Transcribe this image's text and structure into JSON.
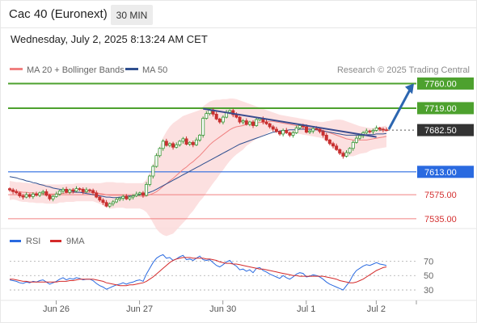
{
  "header": {
    "title": "Cac 40 (Euronext)",
    "timeframe": "30 MIN",
    "datetime": "Wednesday, July 2, 2025 8:13:24 AM CET"
  },
  "legend": [
    {
      "label": "MA 20 + Bollinger Bands",
      "color": "#f08080"
    },
    {
      "label": "MA 50",
      "color": "#2f4f8f"
    }
  ],
  "credit": "Research © 2025 Trading Central",
  "colors": {
    "resistance": "#4da12e",
    "support_blue": "#2a6ae0",
    "support_red": "#f08080",
    "current": "#333333",
    "candle_up": "#3a9a3a",
    "candle_down": "#c83030",
    "trend_arrow": "#2c66b0"
  },
  "chart_data": [
    {
      "type": "candlestick",
      "instrument": "Cac 40 (Euronext)",
      "interval": "30 MIN",
      "x_ticks": [
        "Jun 26",
        "Jun 27",
        "Jun 30",
        "Jul 1",
        "Jul 2"
      ],
      "ylim": [
        7520,
        7770
      ],
      "levels": [
        {
          "label": "7760.00",
          "value": 7760,
          "kind": "resistance"
        },
        {
          "label": "7719.00",
          "value": 7719,
          "kind": "resistance"
        },
        {
          "label": "7682.50",
          "value": 7682.5,
          "kind": "current"
        },
        {
          "label": "7613.00",
          "value": 7613,
          "kind": "support"
        },
        {
          "label": "7575.00",
          "value": 7575,
          "kind": "support"
        },
        {
          "label": "7535.00",
          "value": 7535,
          "kind": "support"
        }
      ],
      "close": [
        7583,
        7580,
        7578,
        7573,
        7571,
        7575,
        7572,
        7576,
        7574,
        7578,
        7580,
        7574,
        7568,
        7572,
        7576,
        7581,
        7584,
        7579,
        7583,
        7581,
        7585,
        7584,
        7580,
        7583,
        7582,
        7578,
        7571,
        7566,
        7562,
        7556,
        7560,
        7563,
        7567,
        7569,
        7572,
        7568,
        7571,
        7573,
        7576,
        7578,
        7574,
        7592,
        7606,
        7622,
        7640,
        7652,
        7664,
        7657,
        7660,
        7654,
        7658,
        7664,
        7668,
        7659,
        7662,
        7658,
        7666,
        7674,
        7702,
        7710,
        7716,
        7709,
        7701,
        7696,
        7704,
        7712,
        7715,
        7708,
        7704,
        7696,
        7698,
        7692,
        7696,
        7690,
        7700,
        7702,
        7696,
        7693,
        7688,
        7684,
        7680,
        7676,
        7682,
        7678,
        7674,
        7678,
        7686,
        7690,
        7688,
        7679,
        7681,
        7685,
        7684,
        7680,
        7674,
        7666,
        7660,
        7656,
        7650,
        7644,
        7639,
        7645,
        7652,
        7662,
        7669,
        7673,
        7678,
        7681,
        7680,
        7682,
        7686,
        7684,
        7683,
        7682.5
      ],
      "ma20": [
        7582,
        7582,
        7581,
        7580,
        7579,
        7579,
        7578,
        7578,
        7577,
        7577,
        7577,
        7576,
        7576,
        7576,
        7576,
        7577,
        7577,
        7578,
        7578,
        7578,
        7579,
        7579,
        7579,
        7579,
        7579,
        7579,
        7578,
        7577,
        7576,
        7575,
        7574,
        7574,
        7574,
        7574,
        7574,
        7573,
        7573,
        7573,
        7573,
        7573,
        7572,
        7573,
        7575,
        7577,
        7580,
        7584,
        7589,
        7593,
        7598,
        7602,
        7607,
        7612,
        7617,
        7621,
        7626,
        7630,
        7635,
        7640,
        7646,
        7652,
        7658,
        7663,
        7667,
        7671,
        7675,
        7679,
        7683,
        7686,
        7688,
        7689,
        7690,
        7692,
        7693,
        7694,
        7695,
        7695,
        7696,
        7696,
        7697,
        7697,
        7696,
        7695,
        7694,
        7693,
        7692,
        7691,
        7690,
        7689,
        7688,
        7687,
        7686,
        7685,
        7684,
        7683,
        7682,
        7680,
        7678,
        7676,
        7674,
        7672,
        7670,
        7668,
        7667,
        7666,
        7666,
        7666,
        7666,
        7666,
        7667,
        7668,
        7669,
        7670,
        7671,
        7672
      ],
      "bollinger_upper": [
        7598,
        7597,
        7596,
        7596,
        7595,
        7595,
        7594,
        7594,
        7593,
        7593,
        7593,
        7592,
        7592,
        7592,
        7592,
        7592,
        7592,
        7593,
        7593,
        7593,
        7594,
        7594,
        7594,
        7594,
        7594,
        7594,
        7594,
        7594,
        7595,
        7596,
        7596,
        7596,
        7595,
        7595,
        7595,
        7594,
        7594,
        7594,
        7594,
        7594,
        7594,
        7600,
        7612,
        7626,
        7642,
        7656,
        7670,
        7680,
        7688,
        7694,
        7698,
        7702,
        7706,
        7708,
        7710,
        7712,
        7714,
        7716,
        7722,
        7726,
        7730,
        7732,
        7733,
        7733,
        7734,
        7734,
        7735,
        7735,
        7734,
        7732,
        7730,
        7728,
        7726,
        7724,
        7722,
        7720,
        7718,
        7716,
        7714,
        7712,
        7710,
        7708,
        7707,
        7706,
        7705,
        7704,
        7703,
        7702,
        7701,
        7700,
        7699,
        7698,
        7697,
        7696,
        7696,
        7697,
        7698,
        7699,
        7700,
        7700,
        7699,
        7697,
        7695,
        7693,
        7691,
        7689,
        7688,
        7687,
        7686,
        7686,
        7687,
        7688,
        7689,
        7690
      ],
      "bollinger_lower": [
        7566,
        7567,
        7566,
        7564,
        7563,
        7563,
        7562,
        7562,
        7561,
        7561,
        7561,
        7560,
        7560,
        7560,
        7560,
        7562,
        7562,
        7563,
        7563,
        7563,
        7564,
        7564,
        7564,
        7564,
        7564,
        7564,
        7562,
        7560,
        7557,
        7554,
        7552,
        7552,
        7553,
        7553,
        7553,
        7552,
        7552,
        7552,
        7552,
        7552,
        7550,
        7546,
        7538,
        7528,
        7518,
        7512,
        7508,
        7506,
        7508,
        7510,
        7516,
        7522,
        7528,
        7534,
        7542,
        7548,
        7556,
        7564,
        7570,
        7578,
        7586,
        7594,
        7601,
        7609,
        7616,
        7624,
        7631,
        7637,
        7642,
        7646,
        7650,
        7656,
        7660,
        7664,
        7668,
        7670,
        7674,
        7676,
        7680,
        7682,
        7682,
        7682,
        7681,
        7680,
        7679,
        7678,
        7677,
        7676,
        7675,
        7674,
        7673,
        7672,
        7671,
        7670,
        7668,
        7663,
        7658,
        7653,
        7648,
        7644,
        7641,
        7639,
        7639,
        7639,
        7641,
        7643,
        7644,
        7645,
        7648,
        7650,
        7651,
        7652,
        7653,
        7654
      ],
      "ma50": [
        7605,
        7604,
        7603,
        7601,
        7600,
        7598,
        7597,
        7595,
        7594,
        7592,
        7591,
        7589,
        7588,
        7586,
        7585,
        7584,
        7583,
        7582,
        7581,
        7580,
        7579,
        7579,
        7578,
        7577,
        7576,
        7575,
        7574,
        7573,
        7572,
        7571,
        7571,
        7570,
        7570,
        7571,
        7571,
        7572,
        7573,
        7573,
        7574,
        7575,
        7576,
        7577,
        7579,
        7581,
        7584,
        7587,
        7590,
        7593,
        7596,
        7599,
        7602,
        7605,
        7608,
        7611,
        7614,
        7617,
        7620,
        7623,
        7626,
        7629,
        7632,
        7635,
        7638,
        7641,
        7644,
        7647,
        7650,
        7653,
        7656,
        7659,
        7661,
        7663,
        7665,
        7667,
        7669,
        7671,
        7673,
        7675,
        7677,
        7679,
        7680,
        7681,
        7682,
        7682,
        7683,
        7683,
        7683,
        7684,
        7684,
        7684,
        7684,
        7683,
        7683,
        7682,
        7681,
        7680,
        7679,
        7678,
        7677,
        7676,
        7675,
        7674,
        7674,
        7674,
        7674,
        7674,
        7674,
        7675,
        7675,
        7675,
        7676,
        7676,
        7676,
        7677
      ],
      "trendline": {
        "from_value": 7718,
        "to_value": 7671
      },
      "forecast_arrow": {
        "from_value": 7684,
        "to_value": 7760
      }
    },
    {
      "type": "line",
      "name": "RSI panel",
      "y_ticks": [
        70,
        50,
        30
      ],
      "ylim": [
        20,
        85
      ],
      "series": [
        {
          "name": "RSI",
          "color": "#2a6ae0",
          "values": [
            44,
            43,
            42,
            40,
            39,
            41,
            40,
            42,
            41,
            43,
            44,
            41,
            38,
            40,
            42,
            45,
            47,
            44,
            46,
            45,
            47,
            46,
            44,
            45,
            45,
            43,
            39,
            36,
            34,
            31,
            33,
            35,
            37,
            38,
            40,
            38,
            40,
            41,
            43,
            44,
            42,
            52,
            60,
            68,
            74,
            77,
            79,
            74,
            75,
            71,
            73,
            76,
            78,
            72,
            73,
            71,
            74,
            77,
            72,
            71,
            72,
            68,
            64,
            62,
            65,
            69,
            71,
            66,
            63,
            58,
            59,
            56,
            58,
            54,
            60,
            61,
            57,
            55,
            52,
            50,
            48,
            46,
            50,
            47,
            45,
            48,
            52,
            54,
            53,
            48,
            49,
            51,
            50,
            48,
            45,
            41,
            38,
            36,
            34,
            32,
            30,
            36,
            42,
            51,
            57,
            60,
            63,
            65,
            64,
            66,
            68,
            66,
            65,
            64
          ]
        },
        {
          "name": "9MA",
          "color": "#d42a2a",
          "values": [
            45,
            45,
            44,
            43,
            42,
            42,
            41,
            41,
            41,
            41,
            41,
            41,
            41,
            41,
            41,
            42,
            42,
            42,
            43,
            43,
            44,
            45,
            45,
            45,
            45,
            45,
            44,
            43,
            42,
            40,
            39,
            38,
            37,
            36,
            36,
            36,
            37,
            37,
            38,
            39,
            40,
            42,
            45,
            48,
            52,
            56,
            60,
            64,
            68,
            71,
            73,
            74,
            75,
            75,
            75,
            74,
            74,
            74,
            74,
            73,
            73,
            72,
            71,
            69,
            68,
            67,
            67,
            66,
            66,
            65,
            64,
            63,
            62,
            61,
            60,
            59,
            59,
            58,
            57,
            56,
            55,
            54,
            53,
            52,
            51,
            50,
            50,
            49,
            49,
            49,
            49,
            49,
            49,
            49,
            49,
            48,
            47,
            46,
            45,
            43,
            42,
            41,
            40,
            40,
            41,
            43,
            45,
            48,
            51,
            54,
            57,
            59,
            61,
            62
          ]
        }
      ]
    }
  ]
}
